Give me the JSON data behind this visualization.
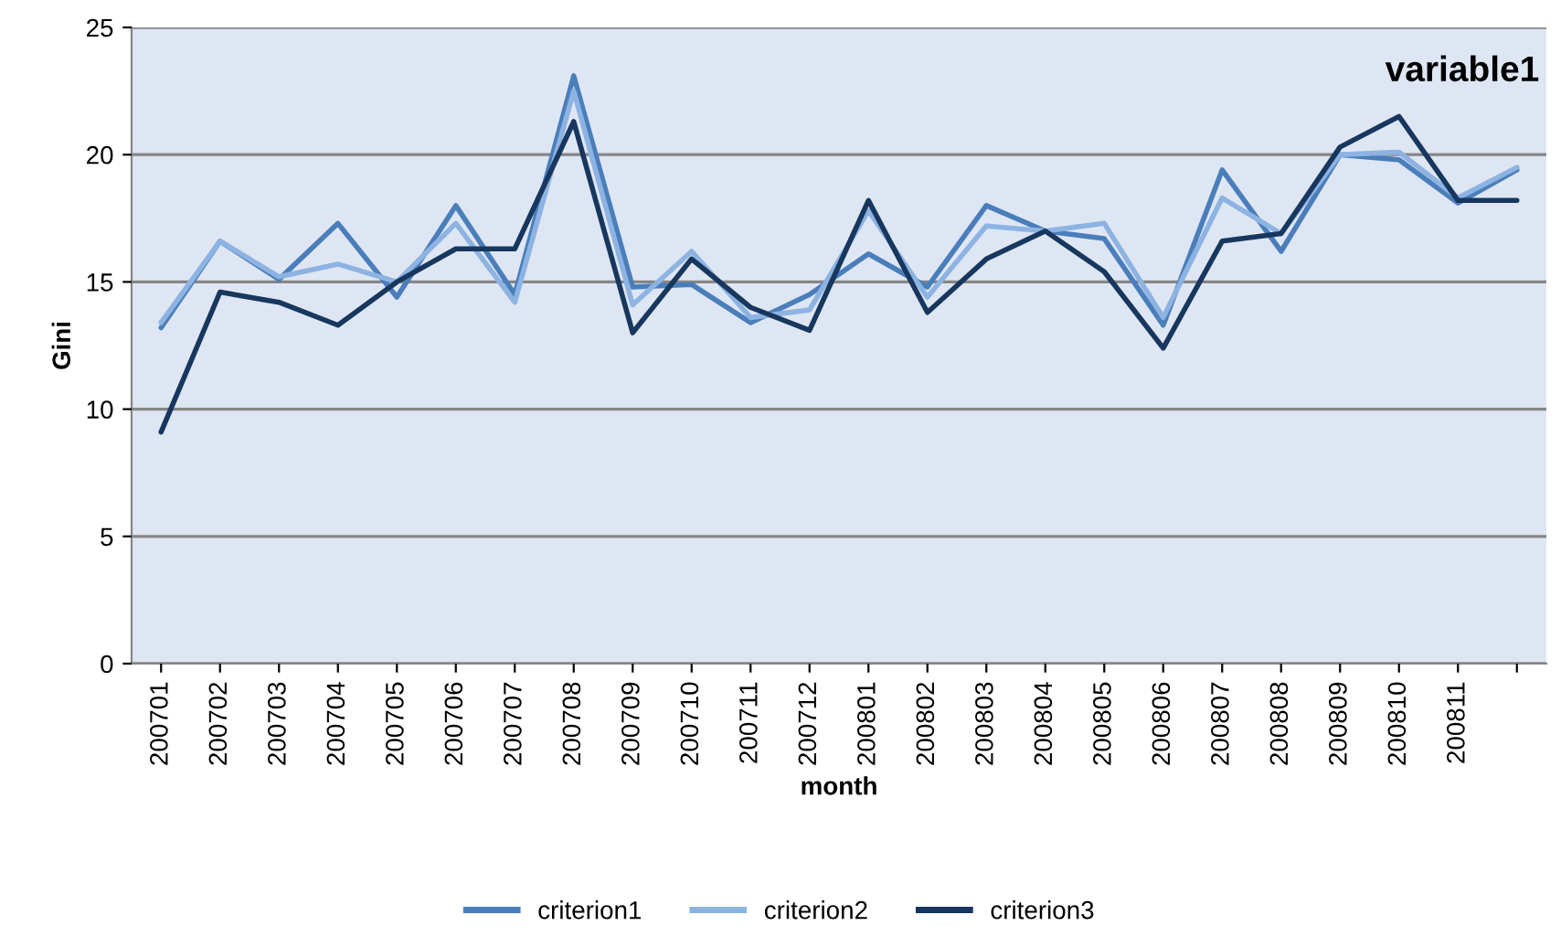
{
  "chart_data": {
    "type": "line",
    "title": "variable1",
    "xlabel": "month",
    "ylabel": "Gini",
    "categories": [
      "200701",
      "200702",
      "200703",
      "200704",
      "200705",
      "200706",
      "200707",
      "200708",
      "200709",
      "200710",
      "200711",
      "200712",
      "200801",
      "200802",
      "200803",
      "200804",
      "200805",
      "200806",
      "200807",
      "200808",
      "200809",
      "200810",
      "200811",
      null
    ],
    "series": [
      {
        "name": "criterion1",
        "color": "#4a7ebb",
        "values": [
          13.2,
          16.6,
          15.1,
          17.3,
          14.4,
          18.0,
          14.5,
          23.1,
          14.8,
          14.9,
          13.4,
          14.5,
          16.1,
          14.8,
          18.0,
          17.0,
          16.7,
          13.3,
          19.4,
          16.2,
          20.0,
          19.8,
          18.1,
          19.4
        ]
      },
      {
        "name": "criterion2",
        "color": "#8db3e2",
        "values": [
          13.4,
          16.6,
          15.2,
          15.7,
          15.0,
          17.3,
          14.2,
          22.5,
          14.1,
          16.2,
          13.6,
          13.9,
          17.8,
          14.4,
          17.2,
          17.0,
          17.3,
          13.6,
          18.3,
          16.9,
          20.0,
          20.1,
          18.3,
          19.5
        ]
      },
      {
        "name": "criterion3",
        "color": "#17375e",
        "values": [
          9.1,
          14.6,
          14.2,
          13.3,
          15.0,
          16.3,
          16.3,
          21.3,
          13.0,
          15.9,
          14.0,
          13.1,
          18.2,
          13.8,
          15.9,
          17.0,
          15.4,
          12.4,
          16.6,
          16.9,
          20.3,
          21.5,
          18.2,
          18.2
        ]
      }
    ],
    "ylim": [
      0,
      25
    ],
    "yticks": [
      0,
      5,
      10,
      15,
      20,
      25
    ],
    "grid": "y",
    "legend": "bottom",
    "marker": "none",
    "line_style": "solid"
  }
}
